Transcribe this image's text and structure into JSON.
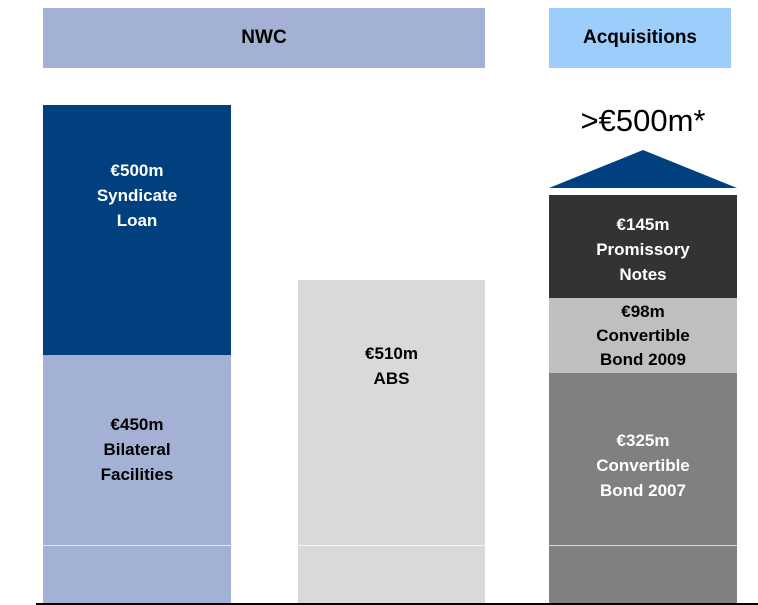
{
  "headers": [
    "NWC",
    "Acquisitions"
  ],
  "annotation": ">€500m*",
  "blocks": [
    {
      "lines": [
        "€500m",
        "Syndicate",
        "Loan"
      ]
    },
    {
      "lines": [
        "€450m",
        "Bilateral",
        "Facilities"
      ]
    },
    {
      "lines": [
        "€510m",
        "ABS"
      ]
    },
    {
      "lines": [
        "€145m",
        "Promissory",
        "Notes"
      ]
    },
    {
      "lines": [
        "€98m",
        "Convertible",
        "Bond 2009"
      ]
    },
    {
      "lines": [
        "€325m",
        "Convertible",
        "Bond 2007"
      ]
    }
  ]
}
